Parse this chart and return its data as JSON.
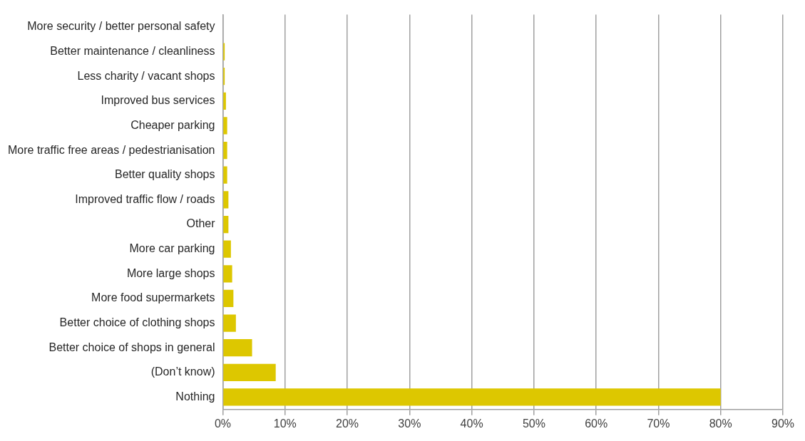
{
  "chart_data": {
    "type": "bar",
    "orientation": "horizontal",
    "categories": [
      "More security / better personal safety",
      "Better maintenance / cleanliness",
      "Less charity / vacant shops",
      "Improved bus services",
      "Cheaper parking",
      "More traffic free areas / pedestrianisation",
      "Better quality shops",
      "Improved traffic flow / roads",
      "Other",
      "More car parking",
      "More large shops",
      "More food supermarkets",
      "Better choice of clothing shops",
      "Better choice of shops in general",
      "(Don’t know)",
      "Nothing"
    ],
    "values": [
      0,
      0.3,
      0.3,
      0.5,
      0.7,
      0.7,
      0.7,
      0.9,
      0.9,
      1.3,
      1.5,
      1.7,
      2.1,
      4.7,
      8.5,
      80
    ],
    "color": "#ddc700",
    "xlim": [
      0,
      90
    ],
    "xticks": [
      {
        "value": 0,
        "label": "0%"
      },
      {
        "value": 10,
        "label": "10%"
      },
      {
        "value": 20,
        "label": "20%"
      },
      {
        "value": 30,
        "label": "30%"
      },
      {
        "value": 40,
        "label": "40%"
      },
      {
        "value": 50,
        "label": "50%"
      },
      {
        "value": 60,
        "label": "60%"
      },
      {
        "value": 70,
        "label": "70%"
      },
      {
        "value": 80,
        "label": "80%"
      },
      {
        "value": 90,
        "label": "90%"
      }
    ],
    "grid": "x",
    "legend": false
  }
}
